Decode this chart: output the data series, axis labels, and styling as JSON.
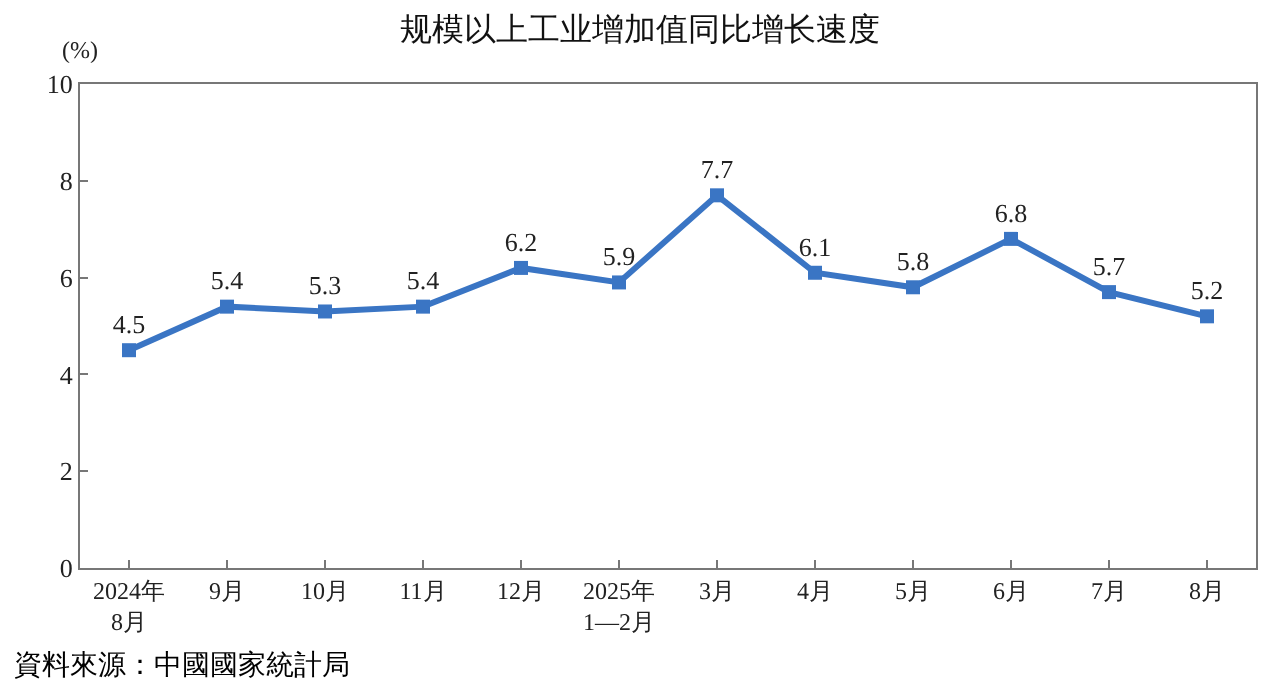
{
  "chart_data": {
    "type": "line",
    "title": "规模以上工业增加值同比增长速度",
    "ylabel": "(%)",
    "categories": [
      "2024年\n8月",
      "9月",
      "10月",
      "11月",
      "12月",
      "2025年\n1—2月",
      "3月",
      "4月",
      "5月",
      "6月",
      "7月",
      "8月"
    ],
    "values": [
      4.5,
      5.4,
      5.3,
      5.4,
      6.2,
      5.9,
      7.7,
      6.1,
      5.8,
      6.8,
      5.7,
      5.2
    ],
    "color": "#3a75c4",
    "marker": "square",
    "line_style": "solid",
    "data_labels": true,
    "ylim": [
      0,
      10
    ],
    "yticks": [
      0,
      2,
      4,
      6,
      8,
      10
    ],
    "annotations": [
      "資料來源：中國國家統計局"
    ]
  }
}
